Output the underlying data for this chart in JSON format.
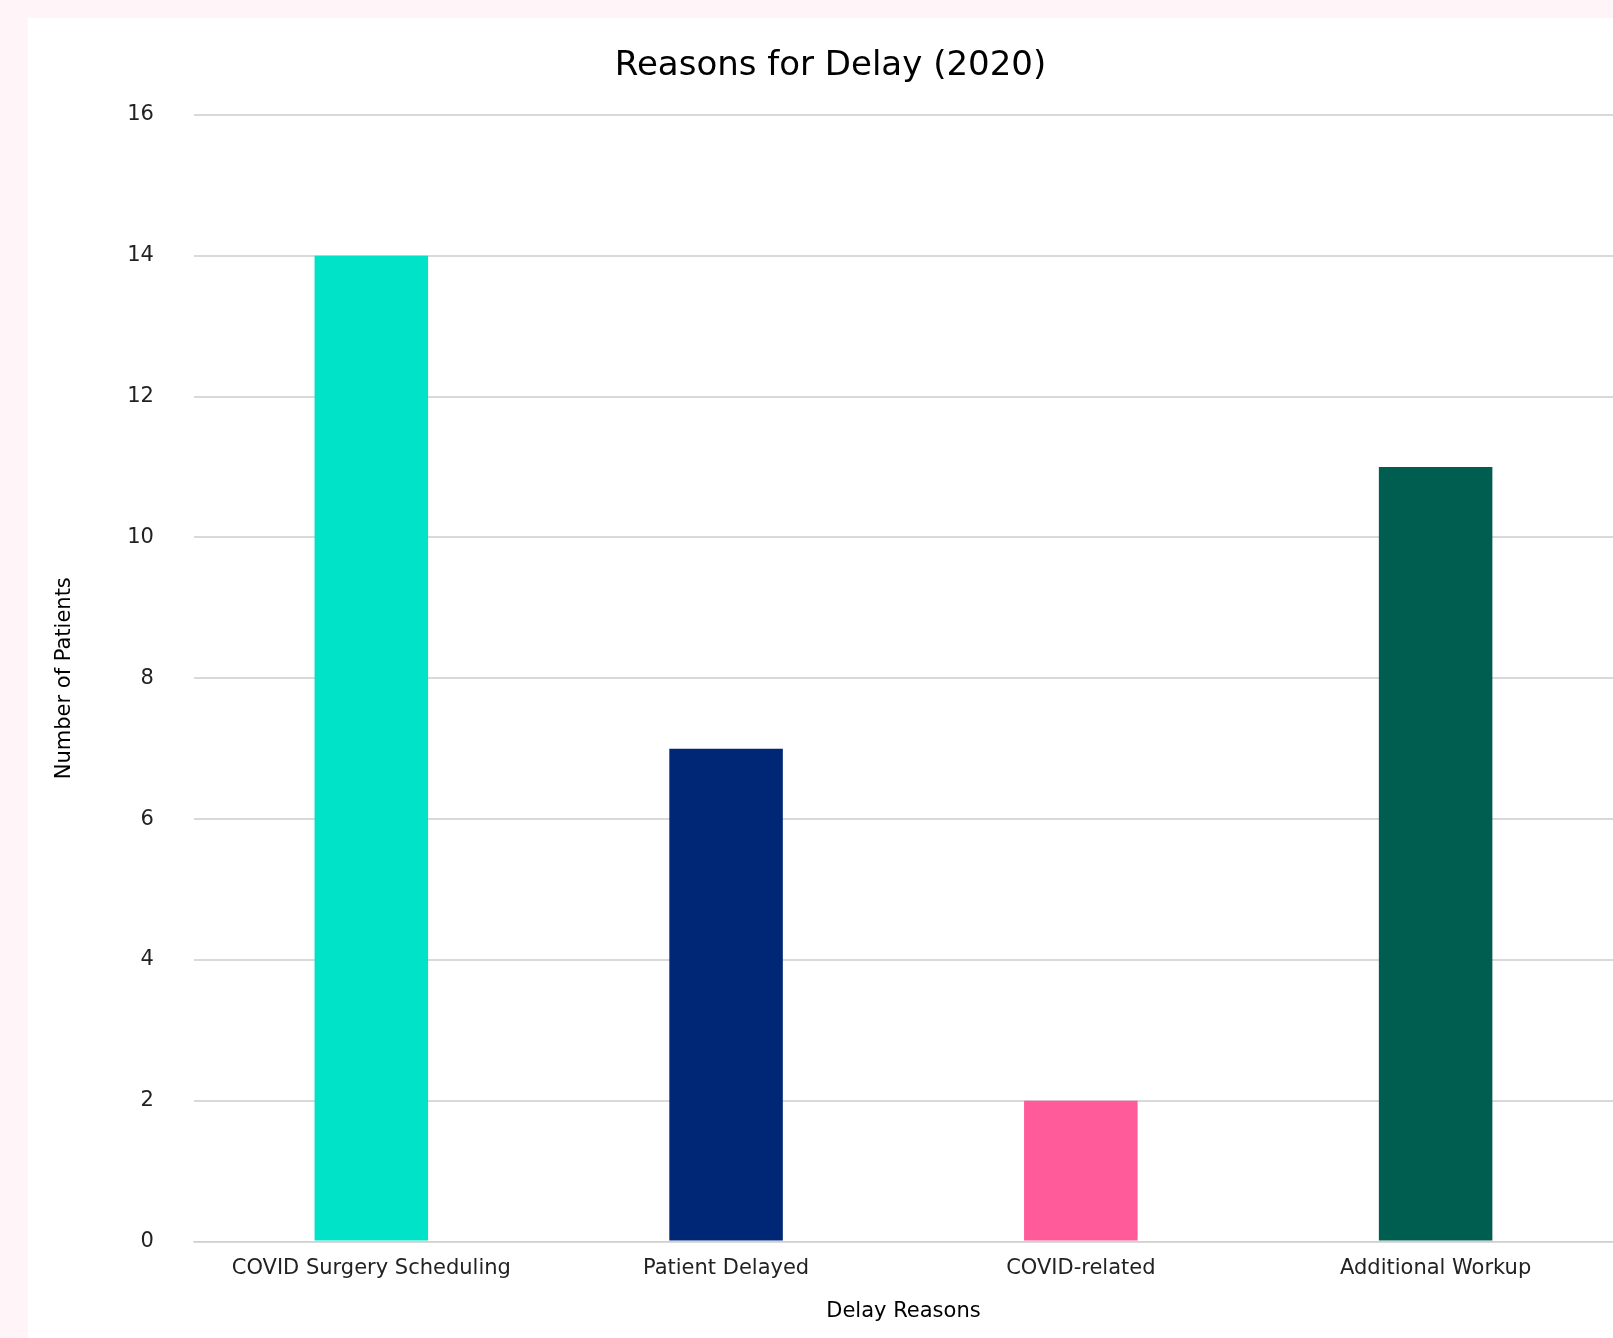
{
  "chart_data": {
    "type": "bar",
    "title": "Reasons for Delay (2020)",
    "xlabel": "Delay Reasons",
    "ylabel": "Number of Patients",
    "categories": [
      "COVID Surgery Scheduling",
      "Patient Delayed",
      "COVID-related",
      "Additional Workup"
    ],
    "values": [
      14,
      7,
      2,
      11
    ],
    "colors": [
      "#00e3c8",
      "#002776",
      "#ff5a99",
      "#005e50"
    ],
    "ylim": [
      0,
      16
    ],
    "yticks": [
      0,
      2,
      4,
      6,
      8,
      10,
      12,
      14,
      16
    ],
    "grid": "y",
    "legend": false
  }
}
